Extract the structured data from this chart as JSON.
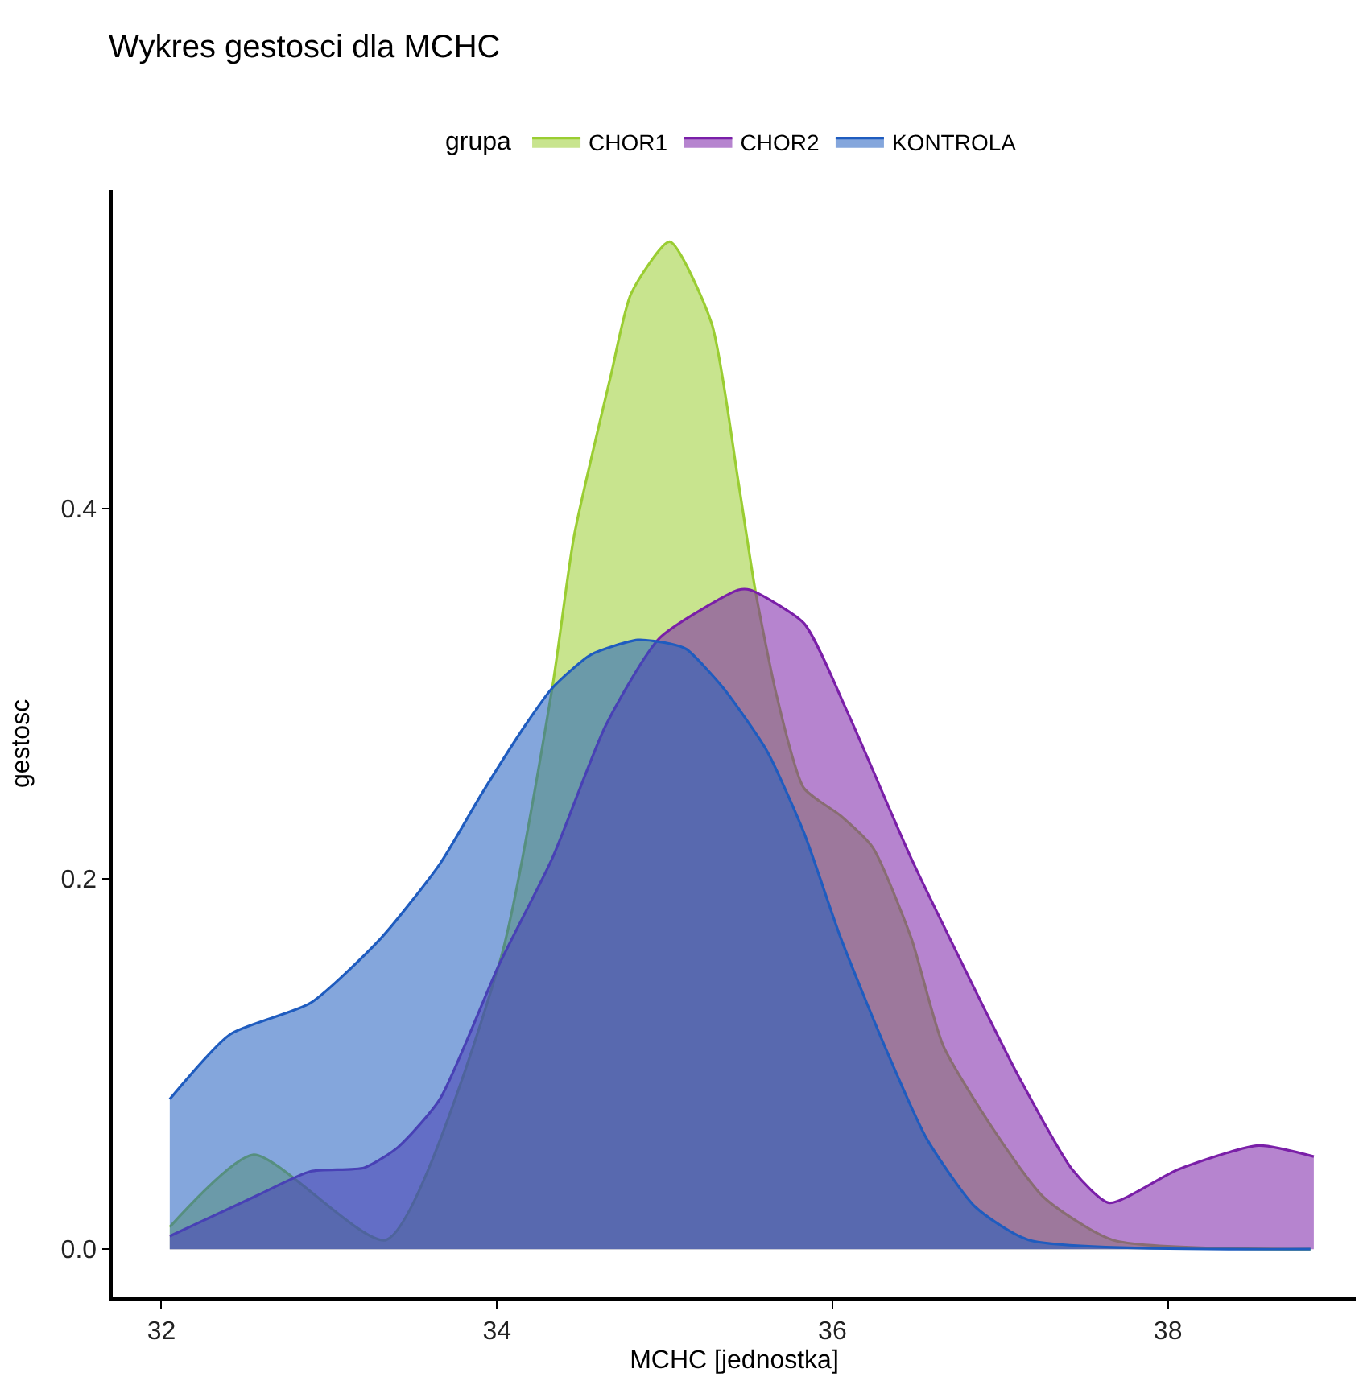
{
  "chart_data": {
    "type": "area",
    "title": "Wykres gestosci dla MCHC",
    "xlabel": "MCHC [jednostka]",
    "ylabel": "gestosc",
    "legend_title": "grupa",
    "legend": "top",
    "xlim": [
      31.71,
      39.12
    ],
    "xticks": [
      32,
      34,
      36,
      38
    ],
    "ylim": [
      -0.026,
      0.572
    ],
    "yticks": [
      {
        "value": 0,
        "label": "0.0"
      },
      0.2,
      0.4
    ],
    "series": [
      {
        "name": "CHOR1",
        "color": "#9acd32",
        "x": [
          32.05,
          32.55,
          33.34,
          34.02,
          34.33,
          34.46,
          34.68,
          34.8,
          35.03,
          35.28,
          35.44,
          35.54,
          35.67,
          35.83,
          36.05,
          36.24,
          36.47,
          36.66,
          36.95,
          37.26,
          37.67,
          38.85
        ],
        "values": [
          0.012,
          0.051,
          0.005,
          0.156,
          0.303,
          0.385,
          0.472,
          0.516,
          0.544,
          0.5,
          0.414,
          0.356,
          0.298,
          0.249,
          0.234,
          0.217,
          0.168,
          0.11,
          0.066,
          0.028,
          0.005,
          0
        ]
      },
      {
        "name": "CHOR2",
        "color": "#7a1fa8",
        "x": [
          32.05,
          32.57,
          32.89,
          33.21,
          33.41,
          33.66,
          34.01,
          34.33,
          34.65,
          34.97,
          35.44,
          35.51,
          35.83,
          36.09,
          36.47,
          36.78,
          37.1,
          37.43,
          37.65,
          38.06,
          38.54,
          38.87
        ],
        "values": [
          0.007,
          0.029,
          0.042,
          0.044,
          0.055,
          0.081,
          0.153,
          0.211,
          0.283,
          0.33,
          0.356,
          0.356,
          0.338,
          0.29,
          0.211,
          0.153,
          0.095,
          0.043,
          0.025,
          0.043,
          0.056,
          0.05
        ]
      },
      {
        "name": "KONTROLA",
        "color": "#1f5cbf",
        "x": [
          32.05,
          32.41,
          32.89,
          33.31,
          33.66,
          33.91,
          34.17,
          34.33,
          34.56,
          34.84,
          35.03,
          35.13,
          35.35,
          35.61,
          35.83,
          36.05,
          36.31,
          36.56,
          36.85,
          37.17,
          38.85
        ],
        "values": [
          0.081,
          0.116,
          0.133,
          0.168,
          0.208,
          0.246,
          0.283,
          0.303,
          0.321,
          0.329,
          0.327,
          0.324,
          0.303,
          0.269,
          0.225,
          0.168,
          0.11,
          0.06,
          0.023,
          0.005,
          0
        ]
      }
    ]
  }
}
